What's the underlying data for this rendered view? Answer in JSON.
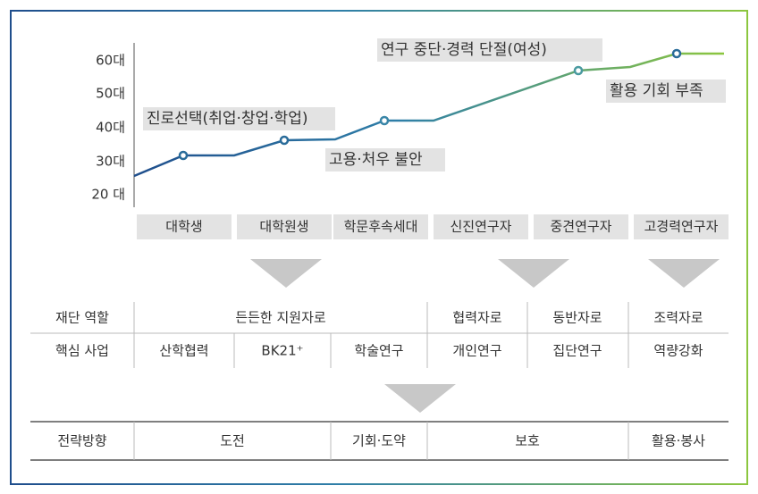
{
  "chart": {
    "y_labels": [
      "60대",
      "50대",
      "40대",
      "30대",
      "20 대"
    ],
    "stages": [
      "대학생",
      "대학원생",
      "학문후속세대",
      "신진연구자",
      "중견연구자",
      "고경력연구자"
    ],
    "annotations": [
      "진로선택(취업·창업·학업)",
      "고용·처우 불안",
      "연구 중단·경력 단절(여성)",
      "활용 기회 부족"
    ]
  },
  "table": {
    "rows": [
      [
        "재단 역할",
        "든든한 지원자로",
        "협력자로",
        "동반자로",
        "조력자로"
      ],
      [
        "핵심 사업",
        "산학협력",
        "BK21⁺",
        "학술연구",
        "개인연구",
        "집단연구",
        "역량강화"
      ]
    ]
  },
  "strategy": {
    "cells": [
      "전략방향",
      "도전",
      "기회·도약",
      "보호",
      "활용·봉사"
    ]
  }
}
